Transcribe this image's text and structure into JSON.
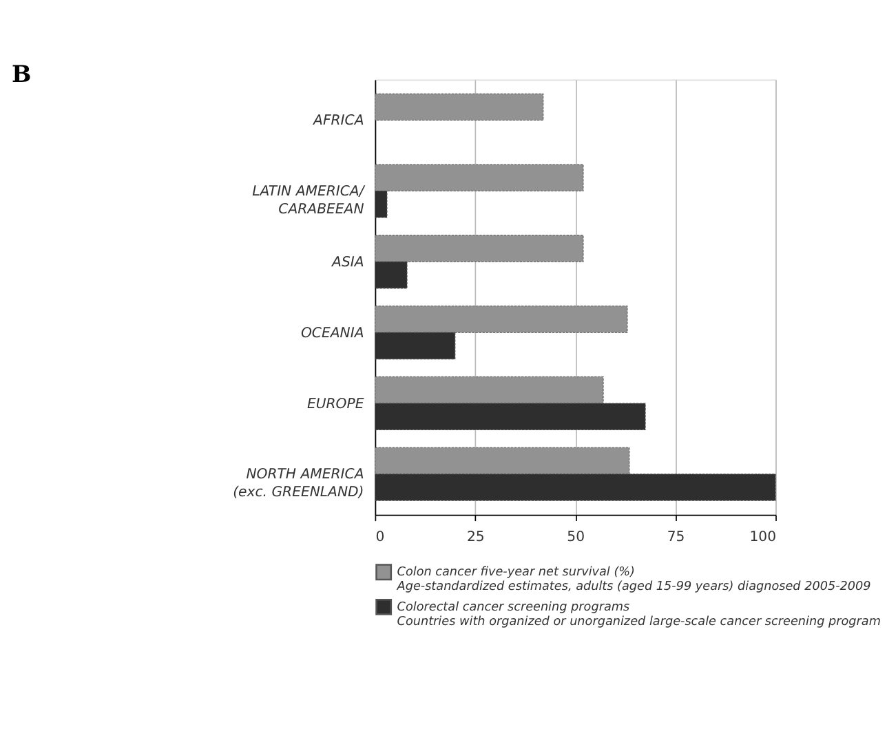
{
  "chart_data": {
    "type": "bar",
    "orientation": "horizontal",
    "title": "B",
    "categories": [
      "AFRICA",
      "LATIN AMERICA/\nCARABEEAN",
      "ASIA",
      "OCEANIA",
      "EUROPE",
      "NORTH AMERICA\n(exc. GREENLAND)"
    ],
    "series": [
      {
        "name": "Colon cancer five-year net survival (%)\nAge-standardized estimates, adults (aged 15-99 years) diagnosed 2005-2009",
        "color": "#929292",
        "values": [
          42,
          52,
          52,
          63,
          57,
          63.5
        ]
      },
      {
        "name": "Colorectal cancer screening programs\nCountries with organized or unorganized large-scale cancer screening program",
        "color": "#2e2e2e",
        "values": [
          null,
          3,
          8,
          20,
          67.5,
          100
        ]
      }
    ],
    "xlim": [
      0,
      100
    ],
    "xticks": [
      0,
      25,
      50,
      75,
      100
    ],
    "grid": "x",
    "legend": "bottom"
  }
}
